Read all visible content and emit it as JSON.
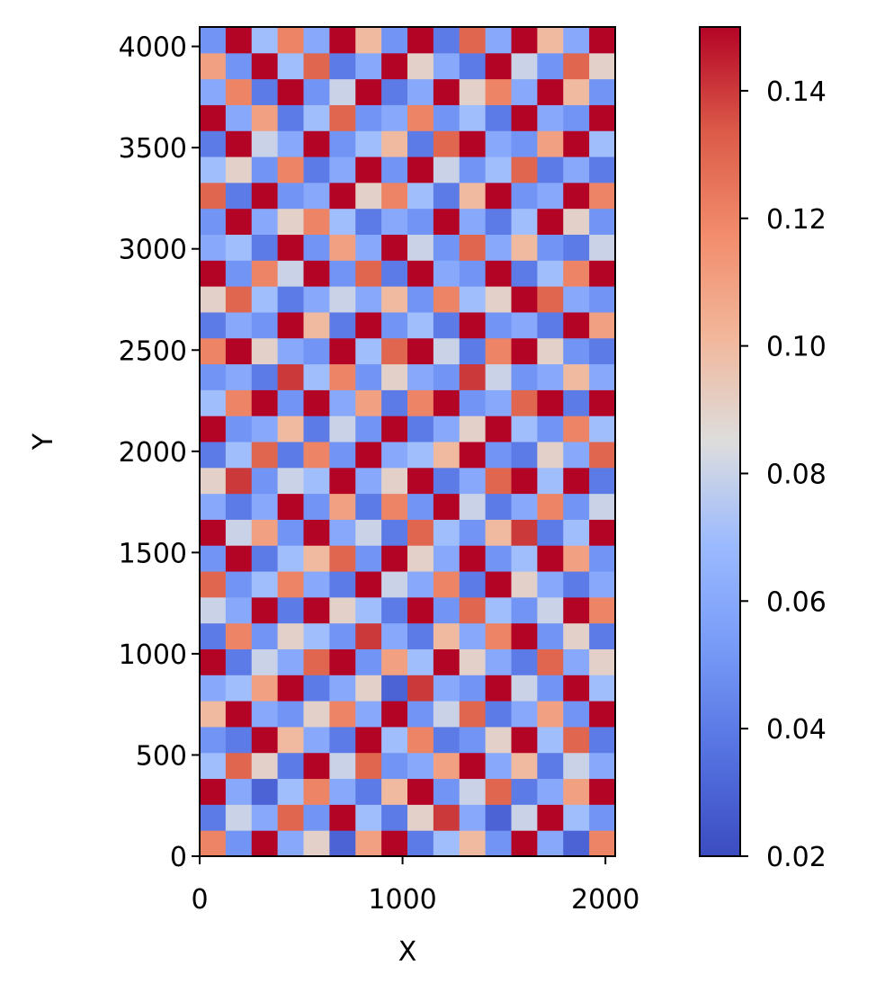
{
  "chart_data": {
    "type": "heatmap",
    "xlabel": "X",
    "ylabel": "Y",
    "xlim": [
      0,
      2048
    ],
    "ylim": [
      0,
      4096
    ],
    "xticks": [
      0,
      1000,
      2000
    ],
    "yticks": [
      0,
      500,
      1000,
      1500,
      2000,
      2500,
      3000,
      3500,
      4000
    ],
    "colormap": "coolwarm",
    "clim": [
      0.02,
      0.15
    ],
    "cticks": [
      0.02,
      0.04,
      0.06,
      0.08,
      {
        "value": 0.1,
        "label": "0.10"
      },
      0.12,
      0.14
    ],
    "z": [
      [
        0.12,
        0.05,
        0.15,
        0.06,
        0.09,
        0.03,
        0.11,
        0.15,
        0.04,
        0.07,
        0.1,
        0.05,
        0.15,
        0.06,
        0.03,
        0.12
      ],
      [
        0.04,
        0.08,
        0.06,
        0.13,
        0.05,
        0.15,
        0.07,
        0.04,
        0.09,
        0.14,
        0.06,
        0.03,
        0.08,
        0.15,
        0.07,
        0.05
      ],
      [
        0.15,
        0.06,
        0.03,
        0.07,
        0.12,
        0.06,
        0.04,
        0.1,
        0.15,
        0.05,
        0.08,
        0.13,
        0.04,
        0.06,
        0.11,
        0.15
      ],
      [
        0.07,
        0.13,
        0.09,
        0.04,
        0.15,
        0.08,
        0.13,
        0.05,
        0.06,
        0.11,
        0.15,
        0.06,
        0.1,
        0.04,
        0.08,
        0.06
      ],
      [
        0.05,
        0.04,
        0.15,
        0.1,
        0.06,
        0.04,
        0.15,
        0.07,
        0.12,
        0.04,
        0.05,
        0.09,
        0.15,
        0.07,
        0.13,
        0.04
      ],
      [
        0.1,
        0.15,
        0.06,
        0.05,
        0.09,
        0.12,
        0.06,
        0.15,
        0.05,
        0.08,
        0.13,
        0.04,
        0.06,
        0.11,
        0.05,
        0.15
      ],
      [
        0.06,
        0.07,
        0.11,
        0.15,
        0.04,
        0.06,
        0.09,
        0.03,
        0.14,
        0.06,
        0.05,
        0.15,
        0.08,
        0.05,
        0.15,
        0.07
      ],
      [
        0.15,
        0.04,
        0.08,
        0.06,
        0.13,
        0.15,
        0.05,
        0.11,
        0.07,
        0.15,
        0.09,
        0.06,
        0.04,
        0.13,
        0.06,
        0.09
      ],
      [
        0.04,
        0.12,
        0.05,
        0.09,
        0.07,
        0.05,
        0.14,
        0.06,
        0.04,
        0.1,
        0.06,
        0.12,
        0.15,
        0.05,
        0.09,
        0.04
      ],
      [
        0.08,
        0.06,
        0.15,
        0.04,
        0.15,
        0.09,
        0.07,
        0.04,
        0.15,
        0.05,
        0.13,
        0.07,
        0.05,
        0.08,
        0.15,
        0.12
      ],
      [
        0.13,
        0.05,
        0.07,
        0.12,
        0.06,
        0.04,
        0.15,
        0.08,
        0.06,
        0.12,
        0.04,
        0.15,
        0.09,
        0.06,
        0.04,
        0.06
      ],
      [
        0.05,
        0.15,
        0.04,
        0.07,
        0.1,
        0.13,
        0.05,
        0.15,
        0.09,
        0.06,
        0.15,
        0.05,
        0.07,
        0.15,
        0.11,
        0.05
      ],
      [
        0.15,
        0.08,
        0.11,
        0.05,
        0.15,
        0.06,
        0.08,
        0.04,
        0.13,
        0.07,
        0.05,
        0.1,
        0.14,
        0.04,
        0.07,
        0.15
      ],
      [
        0.06,
        0.04,
        0.06,
        0.15,
        0.05,
        0.11,
        0.04,
        0.12,
        0.05,
        0.15,
        0.08,
        0.04,
        0.06,
        0.12,
        0.05,
        0.08
      ],
      [
        0.09,
        0.14,
        0.05,
        0.08,
        0.07,
        0.15,
        0.06,
        0.09,
        0.15,
        0.04,
        0.06,
        0.13,
        0.15,
        0.07,
        0.15,
        0.04
      ],
      [
        0.04,
        0.07,
        0.13,
        0.04,
        0.12,
        0.05,
        0.15,
        0.06,
        0.07,
        0.1,
        0.15,
        0.05,
        0.04,
        0.09,
        0.06,
        0.13
      ],
      [
        0.15,
        0.05,
        0.06,
        0.1,
        0.04,
        0.08,
        0.05,
        0.15,
        0.04,
        0.06,
        0.09,
        0.15,
        0.07,
        0.05,
        0.12,
        0.07
      ],
      [
        0.07,
        0.12,
        0.15,
        0.05,
        0.15,
        0.06,
        0.11,
        0.04,
        0.12,
        0.15,
        0.05,
        0.06,
        0.13,
        0.15,
        0.04,
        0.15
      ],
      [
        0.05,
        0.06,
        0.04,
        0.14,
        0.07,
        0.12,
        0.05,
        0.09,
        0.06,
        0.05,
        0.14,
        0.08,
        0.05,
        0.06,
        0.1,
        0.06
      ],
      [
        0.12,
        0.15,
        0.09,
        0.06,
        0.05,
        0.15,
        0.07,
        0.13,
        0.15,
        0.08,
        0.04,
        0.12,
        0.15,
        0.09,
        0.05,
        0.04
      ],
      [
        0.04,
        0.06,
        0.05,
        0.15,
        0.1,
        0.04,
        0.15,
        0.05,
        0.07,
        0.04,
        0.15,
        0.05,
        0.06,
        0.04,
        0.15,
        0.11
      ],
      [
        0.09,
        0.13,
        0.07,
        0.04,
        0.06,
        0.08,
        0.06,
        0.1,
        0.05,
        0.12,
        0.07,
        0.09,
        0.15,
        0.13,
        0.06,
        0.05
      ],
      [
        0.15,
        0.05,
        0.12,
        0.08,
        0.15,
        0.05,
        0.13,
        0.04,
        0.15,
        0.06,
        0.05,
        0.15,
        0.04,
        0.07,
        0.12,
        0.15
      ],
      [
        0.06,
        0.07,
        0.04,
        0.15,
        0.05,
        0.11,
        0.06,
        0.15,
        0.08,
        0.05,
        0.13,
        0.06,
        0.1,
        0.05,
        0.04,
        0.08
      ],
      [
        0.05,
        0.15,
        0.06,
        0.09,
        0.12,
        0.07,
        0.04,
        0.06,
        0.05,
        0.15,
        0.06,
        0.04,
        0.07,
        0.15,
        0.09,
        0.05
      ],
      [
        0.13,
        0.04,
        0.15,
        0.05,
        0.06,
        0.15,
        0.09,
        0.12,
        0.07,
        0.04,
        0.1,
        0.15,
        0.05,
        0.06,
        0.15,
        0.12
      ],
      [
        0.07,
        0.09,
        0.05,
        0.12,
        0.04,
        0.06,
        0.15,
        0.05,
        0.15,
        0.08,
        0.05,
        0.07,
        0.13,
        0.04,
        0.06,
        0.04
      ],
      [
        0.04,
        0.15,
        0.08,
        0.06,
        0.15,
        0.05,
        0.07,
        0.1,
        0.04,
        0.13,
        0.15,
        0.06,
        0.05,
        0.11,
        0.15,
        0.07
      ],
      [
        0.15,
        0.06,
        0.11,
        0.04,
        0.07,
        0.13,
        0.05,
        0.06,
        0.12,
        0.05,
        0.07,
        0.04,
        0.15,
        0.06,
        0.05,
        0.15
      ],
      [
        0.06,
        0.12,
        0.04,
        0.15,
        0.05,
        0.08,
        0.15,
        0.04,
        0.06,
        0.15,
        0.09,
        0.12,
        0.06,
        0.15,
        0.1,
        0.05
      ],
      [
        0.11,
        0.05,
        0.15,
        0.07,
        0.13,
        0.04,
        0.06,
        0.15,
        0.09,
        0.06,
        0.04,
        0.15,
        0.08,
        0.05,
        0.13,
        0.09
      ],
      [
        0.05,
        0.15,
        0.07,
        0.12,
        0.06,
        0.15,
        0.1,
        0.05,
        0.15,
        0.04,
        0.13,
        0.06,
        0.15,
        0.1,
        0.06,
        0.15
      ]
    ]
  }
}
